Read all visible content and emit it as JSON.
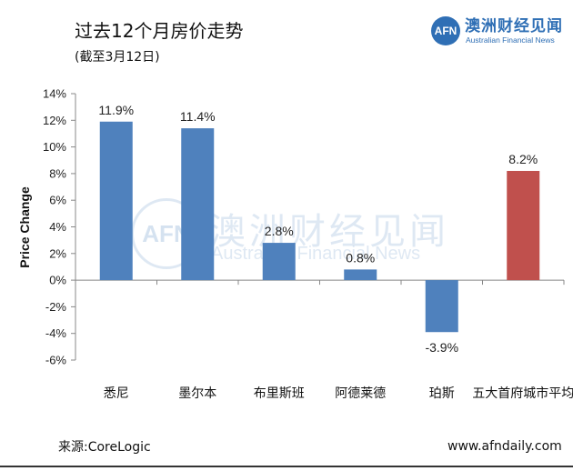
{
  "header": {
    "title": "过去12个月房价走势",
    "subtitle": "(截至3月12日)"
  },
  "logo": {
    "mark": "AFN",
    "name_cn": "澳洲财经见闻",
    "name_en": "Australian Financial News"
  },
  "watermark": {
    "mark": "AFN",
    "name_cn": "澳洲财经见闻",
    "name_en": "Australian Financial News"
  },
  "footer": {
    "source": "来源:CoreLogic",
    "website": "www.afndaily.com"
  },
  "chart_data": {
    "type": "bar",
    "title": "",
    "xlabel": "",
    "ylabel": "Price Change",
    "categories": [
      "悉尼",
      "墨尔本",
      "布里斯班",
      "阿德莱德",
      "珀斯",
      "五大首府城市平均"
    ],
    "values": [
      11.9,
      11.4,
      2.8,
      0.8,
      -3.9,
      8.2
    ],
    "data_labels": [
      "11.9%",
      "11.4%",
      "2.8%",
      "0.8%",
      "-3.9%",
      "8.2%"
    ],
    "ylim": [
      -6,
      14
    ],
    "yticks": [
      14,
      12,
      10,
      8,
      6,
      4,
      2,
      0,
      -2,
      -4,
      -6
    ],
    "ytick_labels": [
      "14%",
      "12%",
      "10%",
      "8%",
      "6%",
      "4%",
      "2%",
      "0%",
      "-2%",
      "-4%",
      "-6%"
    ],
    "colors": [
      "#4f81bd",
      "#4f81bd",
      "#4f81bd",
      "#4f81bd",
      "#4f81bd",
      "#c0504d"
    ],
    "grid": false,
    "legend": "none"
  }
}
